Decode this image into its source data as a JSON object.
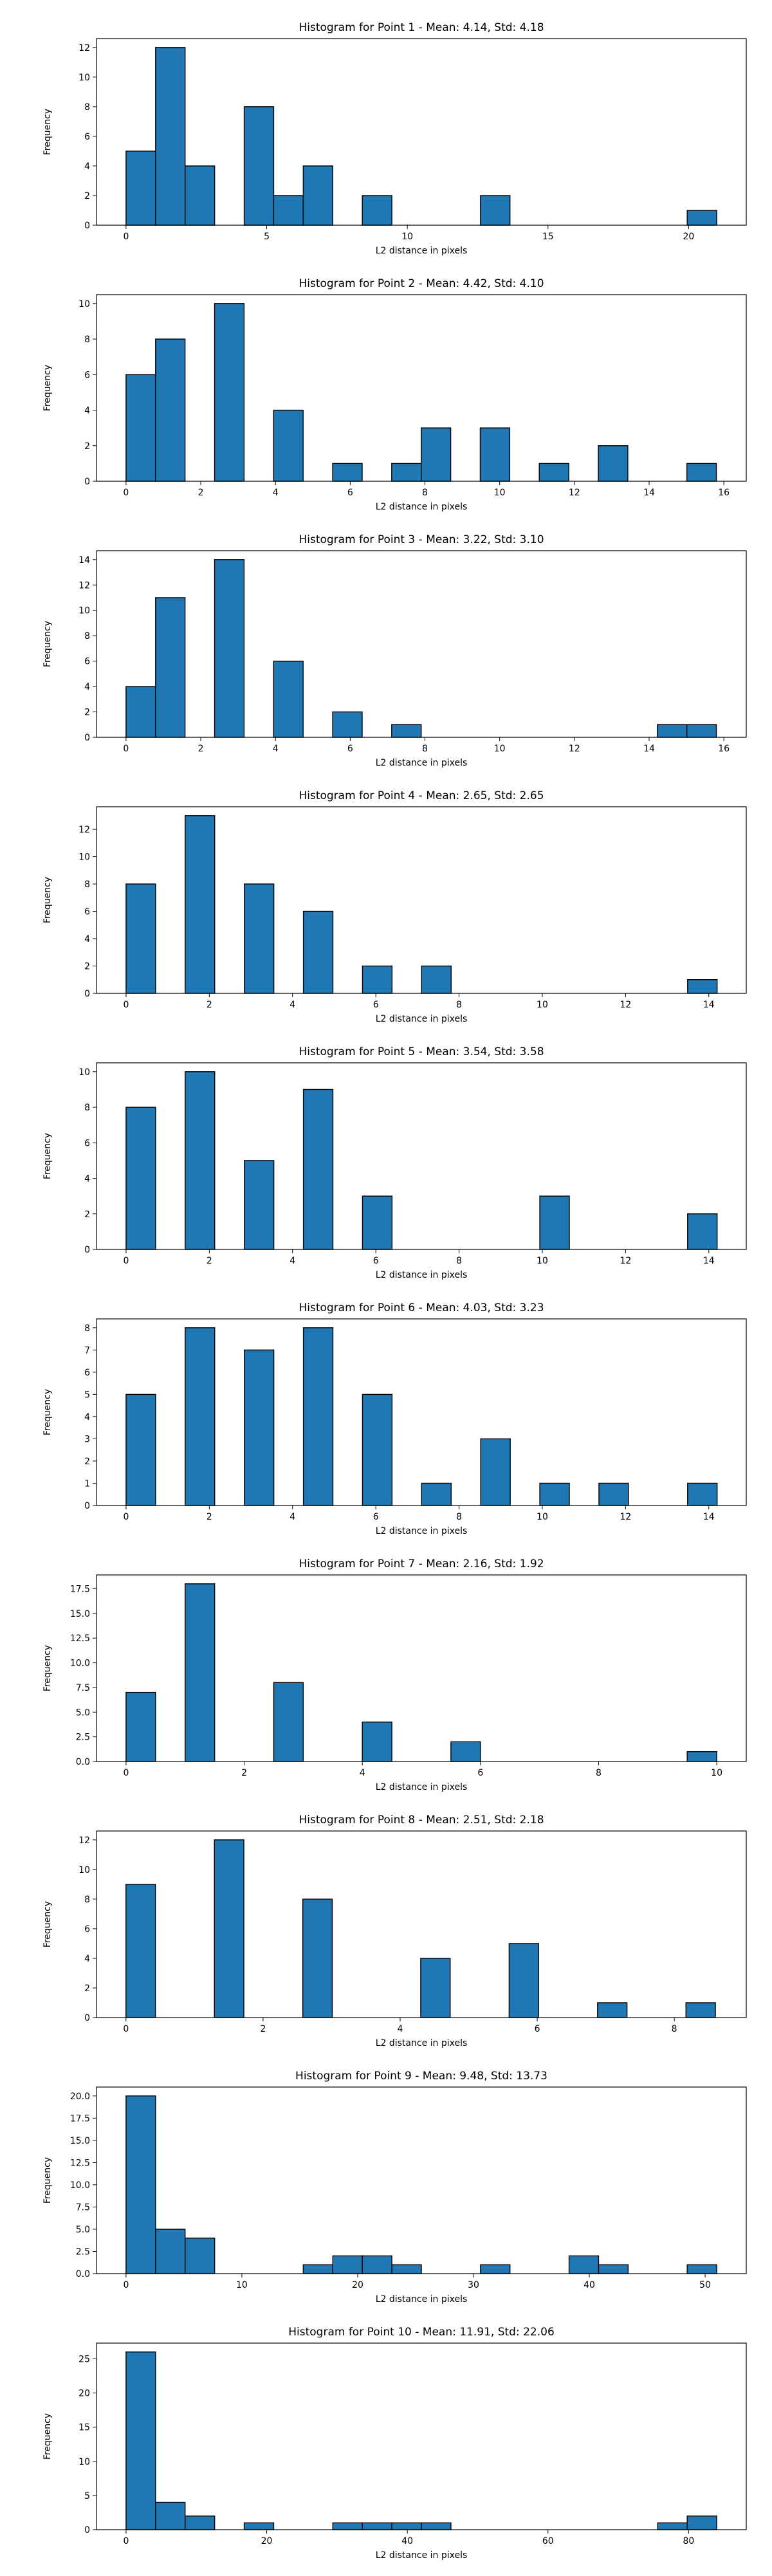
{
  "chart_data": [
    {
      "type": "bar",
      "title": "Histogram for Point 1 - Mean: 4.14, Std: 4.18",
      "xlabel": "L2 distance in pixels",
      "ylabel": "Frequency",
      "bar_color": "#1f77b4",
      "edge_color": "#000000",
      "xlim": [
        -1.05,
        22.05
      ],
      "ylim": [
        0,
        12.6
      ],
      "xticks": [
        0,
        5,
        10,
        15,
        20
      ],
      "yticks": [
        0,
        2,
        4,
        6,
        8,
        10,
        12
      ],
      "bins": [
        {
          "x0": 0.0,
          "x1": 1.05,
          "count": 5
        },
        {
          "x0": 1.05,
          "x1": 2.1,
          "count": 12
        },
        {
          "x0": 2.1,
          "x1": 3.15,
          "count": 4
        },
        {
          "x0": 4.2,
          "x1": 5.25,
          "count": 8
        },
        {
          "x0": 5.25,
          "x1": 6.3,
          "count": 2
        },
        {
          "x0": 6.3,
          "x1": 7.35,
          "count": 4
        },
        {
          "x0": 8.4,
          "x1": 9.45,
          "count": 2
        },
        {
          "x0": 12.6,
          "x1": 13.65,
          "count": 2
        },
        {
          "x0": 19.95,
          "x1": 21.0,
          "count": 1
        }
      ]
    },
    {
      "type": "bar",
      "title": "Histogram for Point 2 - Mean: 4.42, Std: 4.10",
      "xlabel": "L2 distance in pixels",
      "ylabel": "Frequency",
      "bar_color": "#1f77b4",
      "edge_color": "#000000",
      "xlim": [
        -0.79,
        16.6
      ],
      "ylim": [
        0,
        10.5
      ],
      "xticks": [
        0,
        2,
        4,
        6,
        8,
        10,
        12,
        14,
        16
      ],
      "yticks": [
        0,
        2,
        4,
        6,
        8,
        10
      ],
      "bins": [
        {
          "x0": 0.0,
          "x1": 0.79,
          "count": 6
        },
        {
          "x0": 0.79,
          "x1": 1.58,
          "count": 8
        },
        {
          "x0": 2.37,
          "x1": 3.16,
          "count": 10
        },
        {
          "x0": 3.95,
          "x1": 4.74,
          "count": 4
        },
        {
          "x0": 5.53,
          "x1": 6.32,
          "count": 1
        },
        {
          "x0": 7.11,
          "x1": 7.9,
          "count": 1
        },
        {
          "x0": 7.9,
          "x1": 8.69,
          "count": 3
        },
        {
          "x0": 9.48,
          "x1": 10.27,
          "count": 3
        },
        {
          "x0": 11.06,
          "x1": 11.85,
          "count": 1
        },
        {
          "x0": 12.64,
          "x1": 13.43,
          "count": 2
        },
        {
          "x0": 15.01,
          "x1": 15.8,
          "count": 1
        }
      ]
    },
    {
      "type": "bar",
      "title": "Histogram for Point 3 - Mean: 3.22, Std: 3.10",
      "xlabel": "L2 distance in pixels",
      "ylabel": "Frequency",
      "bar_color": "#1f77b4",
      "edge_color": "#000000",
      "xlim": [
        -0.79,
        16.6
      ],
      "ylim": [
        0,
        14.7
      ],
      "xticks": [
        0,
        2,
        4,
        6,
        8,
        10,
        12,
        14,
        16
      ],
      "yticks": [
        0,
        2,
        4,
        6,
        8,
        10,
        12,
        14
      ],
      "bins": [
        {
          "x0": 0.0,
          "x1": 0.79,
          "count": 4
        },
        {
          "x0": 0.79,
          "x1": 1.58,
          "count": 11
        },
        {
          "x0": 2.37,
          "x1": 3.16,
          "count": 14
        },
        {
          "x0": 3.95,
          "x1": 4.74,
          "count": 6
        },
        {
          "x0": 5.53,
          "x1": 6.32,
          "count": 2
        },
        {
          "x0": 7.11,
          "x1": 7.9,
          "count": 1
        },
        {
          "x0": 14.22,
          "x1": 15.01,
          "count": 1
        },
        {
          "x0": 15.01,
          "x1": 15.8,
          "count": 1
        }
      ]
    },
    {
      "type": "bar",
      "title": "Histogram for Point 4 - Mean: 2.65, Std: 2.65",
      "xlabel": "L2 distance in pixels",
      "ylabel": "Frequency",
      "bar_color": "#1f77b4",
      "edge_color": "#000000",
      "xlim": [
        -0.71,
        14.9
      ],
      "ylim": [
        0,
        13.65
      ],
      "xticks": [
        0,
        2,
        4,
        6,
        8,
        10,
        12,
        14
      ],
      "yticks": [
        0,
        2,
        4,
        6,
        8,
        10,
        12
      ],
      "bins": [
        {
          "x0": 0.0,
          "x1": 0.71,
          "count": 8
        },
        {
          "x0": 1.42,
          "x1": 2.13,
          "count": 13
        },
        {
          "x0": 2.84,
          "x1": 3.55,
          "count": 8
        },
        {
          "x0": 4.26,
          "x1": 4.97,
          "count": 6
        },
        {
          "x0": 5.68,
          "x1": 6.39,
          "count": 2
        },
        {
          "x0": 7.1,
          "x1": 7.81,
          "count": 2
        },
        {
          "x0": 13.49,
          "x1": 14.2,
          "count": 1
        }
      ]
    },
    {
      "type": "bar",
      "title": "Histogram for Point 5 - Mean: 3.54, Std: 3.58",
      "xlabel": "L2 distance in pixels",
      "ylabel": "Frequency",
      "bar_color": "#1f77b4",
      "edge_color": "#000000",
      "xlim": [
        -0.71,
        14.9
      ],
      "ylim": [
        0,
        10.5
      ],
      "xticks": [
        0,
        2,
        4,
        6,
        8,
        10,
        12,
        14
      ],
      "yticks": [
        0,
        2,
        4,
        6,
        8,
        10
      ],
      "bins": [
        {
          "x0": 0.0,
          "x1": 0.71,
          "count": 8
        },
        {
          "x0": 1.42,
          "x1": 2.13,
          "count": 10
        },
        {
          "x0": 2.84,
          "x1": 3.55,
          "count": 5
        },
        {
          "x0": 4.26,
          "x1": 4.97,
          "count": 9
        },
        {
          "x0": 5.68,
          "x1": 6.39,
          "count": 3
        },
        {
          "x0": 9.94,
          "x1": 10.65,
          "count": 3
        },
        {
          "x0": 13.49,
          "x1": 14.2,
          "count": 2
        }
      ]
    },
    {
      "type": "bar",
      "title": "Histogram for Point 6 - Mean: 4.03, Std: 3.23",
      "xlabel": "L2 distance in pixels",
      "ylabel": "Frequency",
      "bar_color": "#1f77b4",
      "edge_color": "#000000",
      "xlim": [
        -0.71,
        14.9
      ],
      "ylim": [
        0,
        8.4
      ],
      "xticks": [
        0,
        2,
        4,
        6,
        8,
        10,
        12,
        14
      ],
      "yticks": [
        0,
        1,
        2,
        3,
        4,
        5,
        6,
        7,
        8
      ],
      "bins": [
        {
          "x0": 0.0,
          "x1": 0.71,
          "count": 5
        },
        {
          "x0": 1.42,
          "x1": 2.13,
          "count": 8
        },
        {
          "x0": 2.84,
          "x1": 3.55,
          "count": 7
        },
        {
          "x0": 4.26,
          "x1": 4.97,
          "count": 8
        },
        {
          "x0": 5.68,
          "x1": 6.39,
          "count": 5
        },
        {
          "x0": 7.1,
          "x1": 7.81,
          "count": 1
        },
        {
          "x0": 8.52,
          "x1": 9.23,
          "count": 3
        },
        {
          "x0": 9.94,
          "x1": 10.65,
          "count": 1
        },
        {
          "x0": 11.36,
          "x1": 12.07,
          "count": 1
        },
        {
          "x0": 13.49,
          "x1": 14.2,
          "count": 1
        }
      ]
    },
    {
      "type": "bar",
      "title": "Histogram for Point 7 - Mean: 2.16, Std: 1.92",
      "xlabel": "L2 distance in pixels",
      "ylabel": "Frequency",
      "bar_color": "#1f77b4",
      "edge_color": "#000000",
      "xlim": [
        -0.5,
        10.5
      ],
      "ylim": [
        0,
        18.9
      ],
      "xticks": [
        0,
        2,
        4,
        6,
        8,
        10
      ],
      "yticks": [
        0,
        2.5,
        5.0,
        7.5,
        10.0,
        12.5,
        15.0,
        17.5
      ],
      "ytick_labels": [
        "0.0",
        "2.5",
        "5.0",
        "7.5",
        "10.0",
        "12.5",
        "15.0",
        "17.5"
      ],
      "bins": [
        {
          "x0": 0.0,
          "x1": 0.5,
          "count": 7
        },
        {
          "x0": 1.0,
          "x1": 1.5,
          "count": 18
        },
        {
          "x0": 2.5,
          "x1": 3.0,
          "count": 8
        },
        {
          "x0": 4.0,
          "x1": 4.5,
          "count": 4
        },
        {
          "x0": 5.5,
          "x1": 6.0,
          "count": 2
        },
        {
          "x0": 9.5,
          "x1": 10.0,
          "count": 1
        }
      ]
    },
    {
      "type": "bar",
      "title": "Histogram for Point 8 - Mean: 2.51, Std: 2.18",
      "xlabel": "L2 distance in pixels",
      "ylabel": "Frequency",
      "bar_color": "#1f77b4",
      "edge_color": "#000000",
      "xlim": [
        -0.43,
        9.05
      ],
      "ylim": [
        0,
        12.6
      ],
      "xticks": [
        0,
        2,
        4,
        6,
        8
      ],
      "yticks": [
        0,
        2,
        4,
        6,
        8,
        10,
        12
      ],
      "bins": [
        {
          "x0": 0.0,
          "x1": 0.43,
          "count": 9
        },
        {
          "x0": 1.29,
          "x1": 1.72,
          "count": 12
        },
        {
          "x0": 2.58,
          "x1": 3.01,
          "count": 8
        },
        {
          "x0": 4.3,
          "x1": 4.73,
          "count": 4
        },
        {
          "x0": 5.59,
          "x1": 6.02,
          "count": 5
        },
        {
          "x0": 6.88,
          "x1": 7.31,
          "count": 1
        },
        {
          "x0": 8.17,
          "x1": 8.6,
          "count": 1
        }
      ]
    },
    {
      "type": "bar",
      "title": "Histogram for Point 9 - Mean: 9.48, Std: 13.73",
      "xlabel": "L2 distance in pixels",
      "ylabel": "Frequency",
      "bar_color": "#1f77b4",
      "edge_color": "#000000",
      "xlim": [
        -2.55,
        53.55
      ],
      "ylim": [
        0,
        21.0
      ],
      "xticks": [
        0,
        10,
        20,
        30,
        40,
        50
      ],
      "yticks": [
        0,
        2.5,
        5.0,
        7.5,
        10.0,
        12.5,
        15.0,
        17.5,
        20.0
      ],
      "ytick_labels": [
        "0.0",
        "2.5",
        "5.0",
        "7.5",
        "10.0",
        "12.5",
        "15.0",
        "17.5",
        "20.0"
      ],
      "bins": [
        {
          "x0": 0.0,
          "x1": 2.55,
          "count": 20
        },
        {
          "x0": 2.55,
          "x1": 5.1,
          "count": 5
        },
        {
          "x0": 5.1,
          "x1": 7.65,
          "count": 4
        },
        {
          "x0": 15.3,
          "x1": 17.85,
          "count": 1
        },
        {
          "x0": 17.85,
          "x1": 20.4,
          "count": 2
        },
        {
          "x0": 20.4,
          "x1": 22.95,
          "count": 2
        },
        {
          "x0": 22.95,
          "x1": 25.5,
          "count": 1
        },
        {
          "x0": 30.6,
          "x1": 33.15,
          "count": 1
        },
        {
          "x0": 38.25,
          "x1": 40.8,
          "count": 2
        },
        {
          "x0": 40.8,
          "x1": 43.35,
          "count": 1
        },
        {
          "x0": 48.45,
          "x1": 51.0,
          "count": 1
        }
      ]
    },
    {
      "type": "bar",
      "title": "Histogram for Point 10 - Mean: 11.91, Std: 22.06",
      "xlabel": "L2 distance in pixels",
      "ylabel": "Frequency",
      "bar_color": "#1f77b4",
      "edge_color": "#000000",
      "xlim": [
        -4.2,
        88.2
      ],
      "ylim": [
        0,
        27.3
      ],
      "xticks": [
        0,
        20,
        40,
        60,
        80
      ],
      "yticks": [
        0,
        5,
        10,
        15,
        20,
        25
      ],
      "bins": [
        {
          "x0": 0.0,
          "x1": 4.2,
          "count": 26
        },
        {
          "x0": 4.2,
          "x1": 8.4,
          "count": 4
        },
        {
          "x0": 8.4,
          "x1": 12.6,
          "count": 2
        },
        {
          "x0": 16.8,
          "x1": 21.0,
          "count": 1
        },
        {
          "x0": 29.4,
          "x1": 33.6,
          "count": 1
        },
        {
          "x0": 33.6,
          "x1": 37.8,
          "count": 1
        },
        {
          "x0": 37.8,
          "x1": 42.0,
          "count": 1
        },
        {
          "x0": 42.0,
          "x1": 46.2,
          "count": 1
        },
        {
          "x0": 75.6,
          "x1": 79.8,
          "count": 1
        },
        {
          "x0": 79.8,
          "x1": 84.0,
          "count": 2
        }
      ]
    }
  ]
}
